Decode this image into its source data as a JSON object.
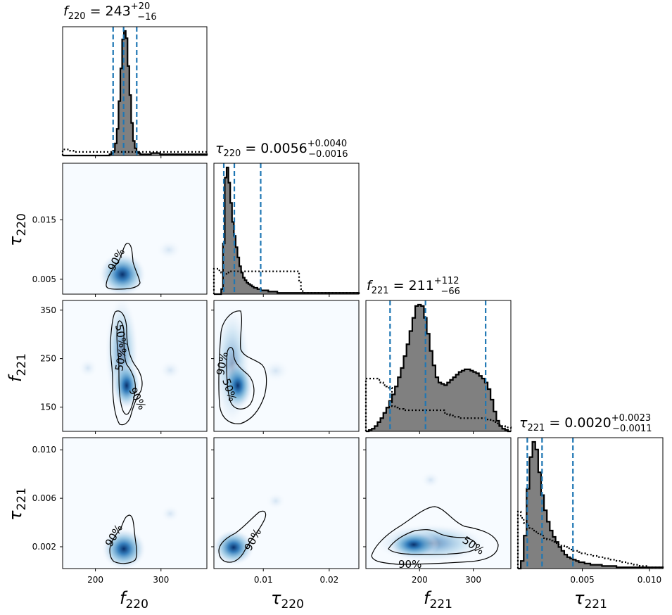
{
  "chart_data": {
    "type": "corner",
    "parameters": [
      {
        "symbol": "f",
        "sub": "220",
        "title_value": "243",
        "upper": "+20",
        "lower": "−16",
        "range": [
          150,
          370
        ],
        "ticks": [
          200,
          300
        ],
        "tick_labels": [
          "200",
          "300"
        ],
        "median": 243,
        "q_low": 227,
        "q_high": 263
      },
      {
        "symbol": "τ",
        "sub": "220",
        "title_value": "0.0056",
        "upper": "+0.0040",
        "lower": "−0.0016",
        "range": [
          0.0025,
          0.0245
        ],
        "ticks": [
          0.01,
          0.02
        ],
        "tick_labels": [
          "0.01",
          "0.02"
        ],
        "y_ticks": [
          0.005,
          0.015
        ],
        "y_tick_labels": [
          "0.005",
          "0.015"
        ],
        "median": 0.0056,
        "q_low": 0.004,
        "q_high": 0.0096
      },
      {
        "symbol": "f",
        "sub": "221",
        "title_value": "211",
        "upper": "+112",
        "lower": "−66",
        "range": [
          100,
          370
        ],
        "ticks": [
          200,
          300
        ],
        "tick_labels": [
          "200",
          "300"
        ],
        "y_ticks": [
          150,
          250,
          350
        ],
        "y_tick_labels": [
          "150",
          "250",
          "350"
        ],
        "median": 211,
        "q_low": 145,
        "q_high": 323
      },
      {
        "symbol": "τ",
        "sub": "221",
        "title_value": "0.0020",
        "upper": "+0.0023",
        "lower": "−0.0011",
        "range": [
          0.0002,
          0.011
        ],
        "ticks": [
          0.005,
          0.01
        ],
        "tick_labels": [
          "0.005",
          "0.010"
        ],
        "y_ticks": [
          0.002,
          0.006,
          0.01
        ],
        "y_tick_labels": [
          "0.002",
          "0.006",
          "0.010"
        ],
        "median": 0.002,
        "q_low": 0.0009,
        "q_high": 0.0043
      }
    ],
    "histograms": [
      {
        "param": 0,
        "edges_from": 150,
        "edges_to": 370,
        "posterior": [
          0,
          0,
          0,
          0,
          0,
          0,
          0,
          0,
          0,
          0,
          0,
          0,
          0,
          0,
          0,
          0,
          0,
          0,
          0,
          0,
          0,
          0,
          0,
          0,
          0,
          0,
          1,
          2,
          4,
          10,
          22,
          45,
          72,
          96,
          103,
          97,
          74,
          50,
          27,
          12,
          6,
          3,
          2,
          1,
          1,
          1,
          1,
          1,
          1,
          2,
          2,
          2,
          2,
          2,
          1,
          1,
          1,
          1,
          1,
          1,
          1,
          1,
          1,
          1,
          1,
          1,
          1,
          1,
          1,
          1,
          1,
          1,
          1,
          1,
          1,
          1,
          1,
          1,
          1,
          1
        ],
        "prior": [
          5,
          5,
          5,
          5,
          4,
          4,
          3,
          3,
          3,
          3,
          3,
          3,
          3,
          3,
          3,
          3,
          3,
          3,
          3,
          3,
          3,
          3,
          3,
          3,
          3,
          3,
          3,
          3,
          3,
          3,
          3,
          3,
          3,
          3,
          3,
          3,
          3,
          3,
          3,
          3,
          3,
          3,
          3,
          3,
          3,
          3,
          3,
          3,
          3,
          3,
          3,
          3,
          3,
          3,
          3,
          3,
          3,
          3,
          3,
          3,
          3,
          3,
          3,
          3,
          3,
          3,
          3,
          3,
          3,
          3,
          3,
          3,
          3,
          3,
          3,
          3,
          3,
          3,
          3,
          3
        ]
      },
      {
        "param": 1,
        "edges_from": 0.0025,
        "edges_to": 0.0245,
        "posterior": [
          0,
          0,
          0,
          0,
          4,
          40,
          92,
          100,
          88,
          72,
          57,
          46,
          37,
          29,
          22,
          17,
          13,
          11,
          9,
          8,
          7,
          6,
          5,
          5,
          4,
          4,
          3,
          3,
          3,
          3,
          2,
          2,
          2,
          2,
          2,
          1,
          1,
          1,
          1,
          1,
          1,
          1,
          1,
          1,
          1,
          1,
          1,
          1,
          1,
          1,
          1,
          1,
          1,
          1,
          1,
          1,
          1,
          1,
          1,
          1,
          1,
          1,
          1,
          1,
          1,
          1,
          1,
          1,
          1,
          1,
          1,
          1,
          1,
          1,
          1,
          1,
          1,
          1,
          1,
          1
        ],
        "prior": [
          20,
          20,
          20,
          18,
          17,
          16,
          16,
          17,
          18,
          18,
          18,
          18,
          18,
          18,
          18,
          18,
          18,
          18,
          18,
          18,
          18,
          18,
          18,
          18,
          18,
          18,
          18,
          18,
          18,
          18,
          18,
          18,
          18,
          18,
          18,
          18,
          18,
          18,
          18,
          18,
          18,
          18,
          18,
          18,
          18,
          18,
          18,
          10,
          4,
          1,
          1,
          1,
          1,
          1,
          1,
          1,
          1,
          1,
          1,
          1,
          1,
          1,
          1,
          1,
          1,
          1,
          1,
          1,
          1,
          1,
          1,
          1,
          1,
          1,
          1,
          1,
          1,
          1,
          1,
          1
        ]
      },
      {
        "param": 2,
        "edges_from": 100,
        "edges_to": 370,
        "posterior": [
          0,
          1,
          2,
          4,
          7,
          10,
          14,
          18,
          23,
          28,
          34,
          41,
          48,
          57,
          66,
          76,
          86,
          95,
          96,
          95,
          86,
          74,
          61,
          50,
          41,
          37,
          36,
          35,
          37,
          39,
          41,
          43,
          45,
          46,
          47,
          47,
          46,
          45,
          44,
          42,
          40,
          37,
          32,
          24,
          15,
          8,
          4,
          2,
          1,
          0
        ],
        "prior": [
          40,
          40,
          40,
          40,
          39,
          37,
          35,
          34,
          33,
          19,
          18,
          17,
          17,
          16,
          16,
          16,
          16,
          16,
          16,
          16,
          16,
          16,
          16,
          16,
          16,
          16,
          16,
          14,
          13,
          12,
          11,
          11,
          10,
          10,
          10,
          10,
          10,
          10,
          10,
          10,
          10,
          10,
          9,
          8,
          7,
          6,
          5,
          4,
          3,
          3
        ]
      },
      {
        "param": 3,
        "edges_from": 0.0002,
        "edges_to": 0.011,
        "posterior": [
          0,
          6,
          26,
          63,
          88,
          100,
          94,
          76,
          58,
          46,
          37,
          30,
          25,
          21,
          17,
          14,
          11,
          9,
          8,
          7,
          6,
          5,
          5,
          4,
          4,
          3,
          3,
          3,
          3,
          2,
          2,
          2,
          2,
          2,
          1,
          1,
          1,
          1,
          1,
          1,
          1,
          1,
          1,
          1,
          1,
          1,
          1,
          1,
          1,
          1
        ],
        "prior": [
          45,
          40,
          36,
          34,
          32,
          30,
          29,
          27,
          26,
          24,
          23,
          22,
          21,
          20,
          19,
          18,
          17,
          16,
          15,
          14,
          14,
          13,
          12,
          12,
          11,
          11,
          10,
          10,
          9,
          9,
          8,
          8,
          7,
          7,
          6,
          6,
          5,
          5,
          4,
          4,
          3,
          3,
          2,
          2,
          2,
          1,
          1,
          1,
          1,
          1
        ]
      }
    ],
    "densities": [
      {
        "row": 1,
        "col": 0,
        "center": [
          244,
          0.0055
        ],
        "contour_labels": [
          "90%"
        ]
      },
      {
        "row": 2,
        "col": 0,
        "center": [
          245,
          205
        ],
        "contour_labels": [
          "50%",
          "50%",
          "90%"
        ]
      },
      {
        "row": 2,
        "col": 1,
        "center": [
          0.0048,
          200
        ],
        "contour_labels": [
          "90%",
          "50%"
        ]
      },
      {
        "row": 3,
        "col": 0,
        "center": [
          242,
          0.0018
        ],
        "contour_labels": [
          "90%"
        ]
      },
      {
        "row": 3,
        "col": 1,
        "center": [
          0.0048,
          0.0019
        ],
        "contour_labels": [
          "90%"
        ]
      },
      {
        "row": 3,
        "col": 2,
        "center": [
          205,
          0.0022
        ],
        "contour_labels": [
          "50%",
          "90%"
        ]
      }
    ],
    "colors": {
      "posterior_fill": "#808080",
      "quantile_line": "#1f77b4",
      "density_map": "Blues"
    }
  }
}
